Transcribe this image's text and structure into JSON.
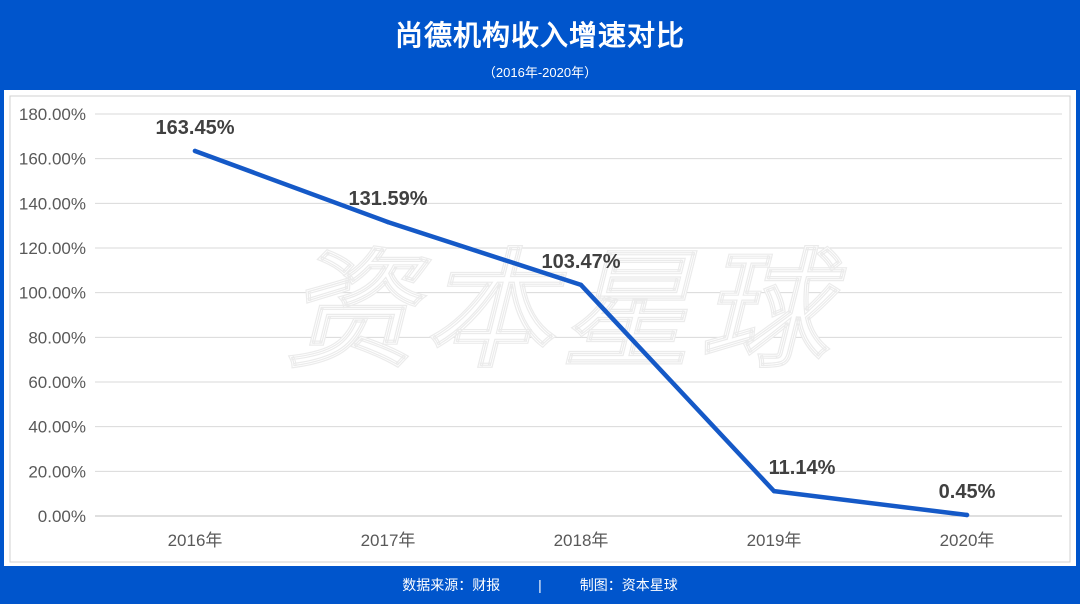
{
  "colors": {
    "brand_blue": "#0055cc",
    "line": "#1559c7",
    "data_label": "#404040",
    "tick_label": "#595959",
    "grid": "#d9d9d9"
  },
  "watermark": "资本星球",
  "footer": {
    "source": "数据来源：财报",
    "separator": "|",
    "credit": "制图：资本星球"
  },
  "chart_data": {
    "type": "line",
    "title": "尚德机构收入增速对比",
    "subtitle": "（2016年-2020年）",
    "xlabel": "",
    "ylabel": "",
    "categories": [
      "2016年",
      "2017年",
      "2018年",
      "2019年",
      "2020年"
    ],
    "series": [
      {
        "values": [
          163.45,
          131.59,
          103.47,
          11.14,
          0.45
        ]
      }
    ],
    "data_labels": [
      "163.45%",
      "131.59%",
      "103.47%",
      "11.14%",
      "0.45%"
    ],
    "y_ticks": [
      "0.00%",
      "20.00%",
      "40.00%",
      "60.00%",
      "80.00%",
      "100.00%",
      "120.00%",
      "140.00%",
      "160.00%",
      "180.00%"
    ],
    "ylim": [
      0,
      180
    ],
    "grid": true,
    "legend": "none",
    "markers": false
  }
}
